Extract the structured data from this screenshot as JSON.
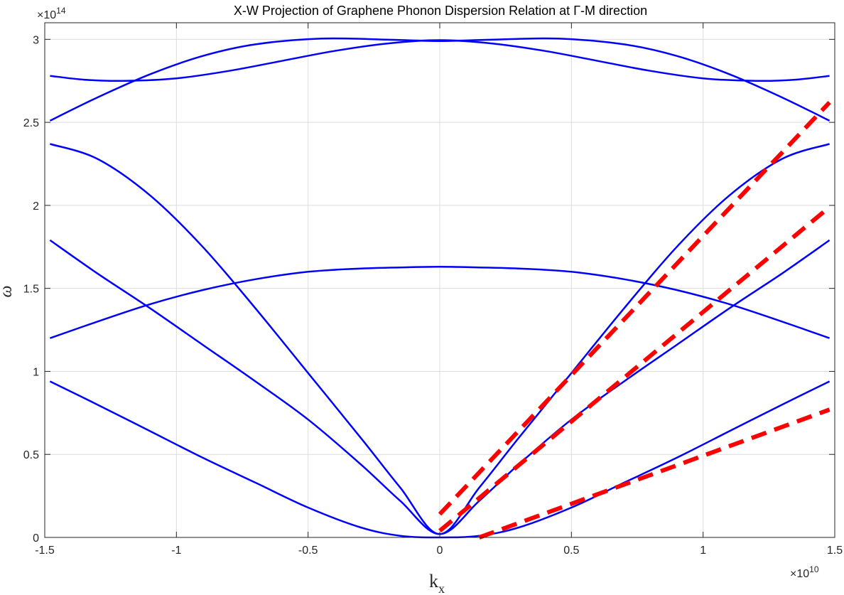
{
  "chart_data": {
    "type": "line",
    "title": "X-W Projection of Graphene Phonon Dispersion Relation at Γ-M direction",
    "xlabel": "k",
    "xlabel_sub": "x",
    "ylabel": "ω",
    "x_exponent_prefix": "×10",
    "x_exponent": "10",
    "y_exponent_prefix": "×10",
    "y_exponent": "14",
    "xlim": [
      -1.5,
      1.5
    ],
    "ylim": [
      0,
      3.1
    ],
    "xticks": [
      -1.5,
      -1,
      -0.5,
      0,
      0.5,
      1,
      1.5
    ],
    "xtick_labels": [
      "-1.5",
      "-1",
      "-0.5",
      "0",
      "0.5",
      "1",
      "1.5"
    ],
    "yticks": [
      0,
      0.5,
      1,
      1.5,
      2,
      2.5,
      3
    ],
    "ytick_labels": [
      "0",
      "0.5",
      "1",
      "1.5",
      "2",
      "2.5",
      "3"
    ],
    "grid": true,
    "colors": {
      "solid": "#0000ff",
      "dashed": "#ff0000",
      "grid": "#dcdcdc",
      "axis": "#262626"
    },
    "series": [
      {
        "style": "solid",
        "x": [
          -1.48,
          -1.35,
          -1.2,
          -1.0,
          -0.8,
          -0.6,
          -0.4,
          -0.2,
          0,
          0.2,
          0.4,
          0.6,
          0.8,
          1.0,
          1.2,
          1.35,
          1.48
        ],
        "y": [
          2.78,
          2.757,
          2.75,
          2.765,
          2.81,
          2.87,
          2.93,
          2.975,
          2.995,
          2.975,
          2.93,
          2.87,
          2.81,
          2.765,
          2.75,
          2.757,
          2.78
        ]
      },
      {
        "style": "solid",
        "x": [
          -1.48,
          -1.3,
          -1.1,
          -0.9,
          -0.7,
          -0.45,
          -0.2,
          0,
          0.2,
          0.45,
          0.7,
          0.9,
          1.1,
          1.3,
          1.48
        ],
        "y": [
          2.51,
          2.65,
          2.79,
          2.9,
          2.97,
          3.005,
          2.998,
          2.99,
          2.998,
          3.005,
          2.97,
          2.9,
          2.79,
          2.65,
          2.51
        ]
      },
      {
        "style": "solid",
        "x": [
          -1.48,
          -1.3,
          -1.1,
          -0.9,
          -0.7,
          -0.5,
          -0.3,
          -0.15,
          0,
          0.15,
          0.3,
          0.5,
          0.7,
          0.9,
          1.1,
          1.3,
          1.48
        ],
        "y": [
          2.37,
          2.28,
          2.06,
          1.75,
          1.38,
          0.99,
          0.6,
          0.3,
          0.02,
          0.3,
          0.6,
          0.99,
          1.38,
          1.75,
          2.06,
          2.28,
          2.37
        ]
      },
      {
        "style": "solid",
        "x": [
          -1.48,
          -1.3,
          -1.1,
          -0.9,
          -0.7,
          -0.5,
          -0.3,
          -0.15,
          0,
          0.15,
          0.3,
          0.5,
          0.7,
          0.9,
          1.1,
          1.3,
          1.48
        ],
        "y": [
          1.79,
          1.59,
          1.38,
          1.16,
          0.94,
          0.71,
          0.44,
          0.22,
          0.02,
          0.22,
          0.44,
          0.71,
          0.94,
          1.16,
          1.38,
          1.59,
          1.79
        ]
      },
      {
        "style": "solid",
        "x": [
          -1.48,
          -1.3,
          -1.1,
          -0.9,
          -0.7,
          -0.5,
          -0.3,
          -0.1,
          0,
          0.1,
          0.3,
          0.5,
          0.7,
          0.9,
          1.1,
          1.3,
          1.48
        ],
        "y": [
          1.2,
          1.3,
          1.405,
          1.49,
          1.555,
          1.6,
          1.62,
          1.628,
          1.63,
          1.628,
          1.62,
          1.6,
          1.555,
          1.49,
          1.405,
          1.3,
          1.2
        ]
      },
      {
        "style": "solid",
        "x": [
          -1.48,
          -1.3,
          -1.1,
          -0.9,
          -0.7,
          -0.5,
          -0.3,
          -0.15,
          0,
          0.15,
          0.3,
          0.5,
          0.7,
          0.9,
          1.1,
          1.3,
          1.48
        ],
        "y": [
          0.94,
          0.8,
          0.64,
          0.48,
          0.33,
          0.18,
          0.06,
          0.01,
          0.0,
          0.01,
          0.06,
          0.18,
          0.33,
          0.48,
          0.64,
          0.8,
          0.94
        ]
      },
      {
        "style": "dashed",
        "x": [
          0.0,
          1.48
        ],
        "y": [
          0.14,
          2.62
        ]
      },
      {
        "style": "dashed",
        "x": [
          0.0,
          1.48
        ],
        "y": [
          0.04,
          1.99
        ]
      },
      {
        "style": "dashed",
        "x": [
          0.15,
          1.48
        ],
        "y": [
          0.0,
          0.77
        ]
      }
    ]
  }
}
